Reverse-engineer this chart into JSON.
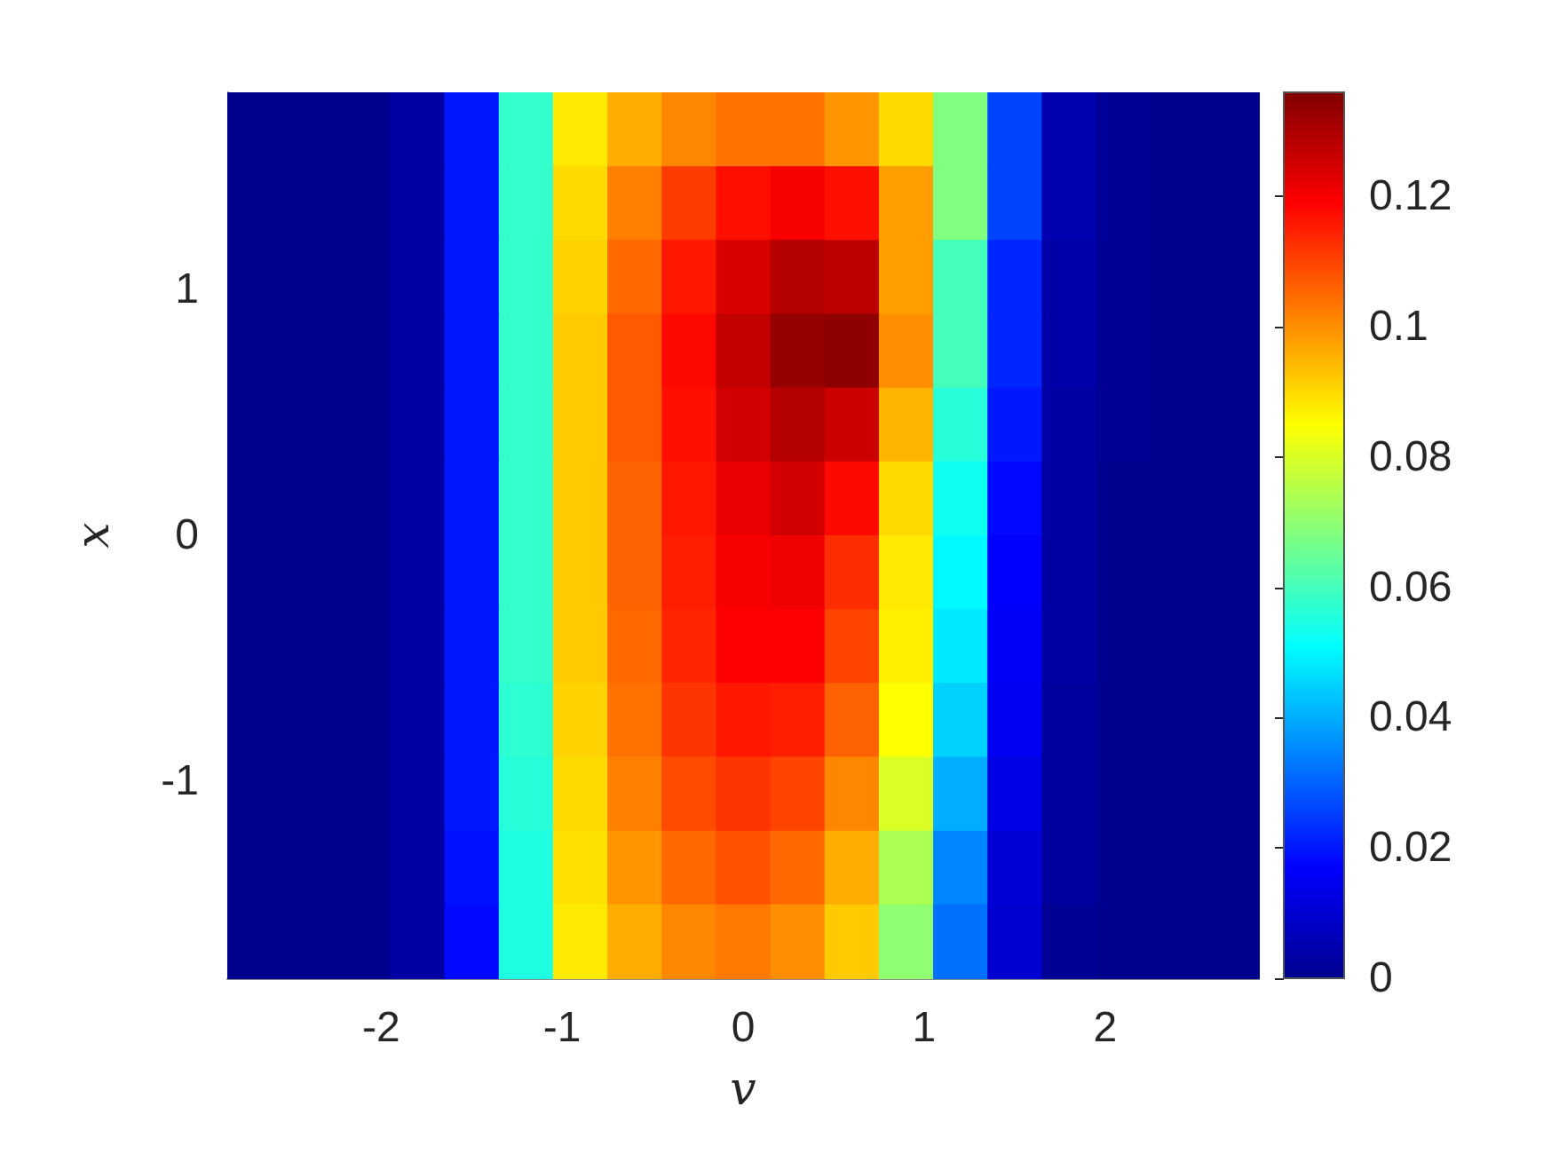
{
  "chart_data": {
    "type": "heatmap",
    "xlabel": "v",
    "ylabel": "x",
    "x": [
      -2.7,
      -2.4,
      -2.1,
      -1.8,
      -1.5,
      -1.2,
      -0.9,
      -0.6,
      -0.3,
      0,
      0.3,
      0.6,
      0.9,
      1.2,
      1.5,
      1.8,
      2.1,
      2.4,
      2.7
    ],
    "y": [
      1.65,
      1.35,
      1.05,
      0.75,
      0.45,
      0.15,
      -0.15,
      -0.45,
      -0.75,
      -1.05,
      -1.35,
      -1.65
    ],
    "cells": [
      [
        0,
        0,
        0,
        0.003,
        0.02,
        0.058,
        0.088,
        0.096,
        0.101,
        0.104,
        0.104,
        0.099,
        0.09,
        0.068,
        0.026,
        0.005,
        0.001,
        0,
        0
      ],
      [
        0,
        0,
        0,
        0.003,
        0.02,
        0.058,
        0.09,
        0.102,
        0.111,
        0.117,
        0.12,
        0.117,
        0.098,
        0.068,
        0.026,
        0.005,
        0.001,
        0,
        0
      ],
      [
        0,
        0,
        0,
        0.003,
        0.02,
        0.058,
        0.091,
        0.105,
        0.116,
        0.124,
        0.129,
        0.128,
        0.098,
        0.06,
        0.022,
        0.004,
        0.001,
        0,
        0
      ],
      [
        0,
        0,
        0,
        0.003,
        0.02,
        0.058,
        0.092,
        0.107,
        0.118,
        0.127,
        0.133,
        0.134,
        0.1,
        0.06,
        0.022,
        0.004,
        0.001,
        0,
        0
      ],
      [
        0,
        0,
        0,
        0.003,
        0.02,
        0.058,
        0.092,
        0.107,
        0.117,
        0.125,
        0.129,
        0.126,
        0.095,
        0.056,
        0.02,
        0.003,
        0.001,
        0,
        0
      ],
      [
        0,
        0,
        0,
        0.003,
        0.02,
        0.058,
        0.092,
        0.106,
        0.116,
        0.122,
        0.125,
        0.118,
        0.09,
        0.053,
        0.018,
        0.003,
        0,
        0,
        0
      ],
      [
        0,
        0,
        0,
        0.003,
        0.02,
        0.058,
        0.092,
        0.106,
        0.115,
        0.12,
        0.121,
        0.113,
        0.088,
        0.05,
        0.017,
        0.003,
        0,
        0,
        0
      ],
      [
        0,
        0,
        0,
        0.003,
        0.02,
        0.058,
        0.092,
        0.105,
        0.114,
        0.119,
        0.119,
        0.11,
        0.087,
        0.048,
        0.016,
        0.003,
        0,
        0,
        0
      ],
      [
        0,
        0,
        0,
        0.003,
        0.02,
        0.057,
        0.091,
        0.104,
        0.112,
        0.116,
        0.115,
        0.106,
        0.085,
        0.045,
        0.015,
        0.002,
        0,
        0,
        0
      ],
      [
        0,
        0,
        0,
        0.003,
        0.02,
        0.056,
        0.09,
        0.102,
        0.109,
        0.112,
        0.11,
        0.101,
        0.08,
        0.04,
        0.013,
        0.002,
        0,
        0,
        0
      ],
      [
        0,
        0,
        0,
        0.003,
        0.019,
        0.055,
        0.089,
        0.099,
        0.105,
        0.108,
        0.105,
        0.096,
        0.074,
        0.035,
        0.011,
        0.002,
        0,
        0,
        0
      ],
      [
        0,
        0,
        0,
        0.003,
        0.018,
        0.055,
        0.088,
        0.096,
        0.101,
        0.103,
        0.1,
        0.092,
        0.07,
        0.032,
        0.01,
        0.001,
        0,
        0,
        0
      ]
    ],
    "xlim": [
      -2.85,
      2.85
    ],
    "xticks": [
      -2,
      -1,
      0,
      1,
      2
    ],
    "ylim": [
      -1.8,
      1.8
    ],
    "yticks": [
      -1,
      0,
      1
    ],
    "clim": [
      0,
      0.136
    ],
    "cticks": [
      0,
      0.02,
      0.04,
      0.06,
      0.08,
      0.1,
      0.12
    ]
  }
}
